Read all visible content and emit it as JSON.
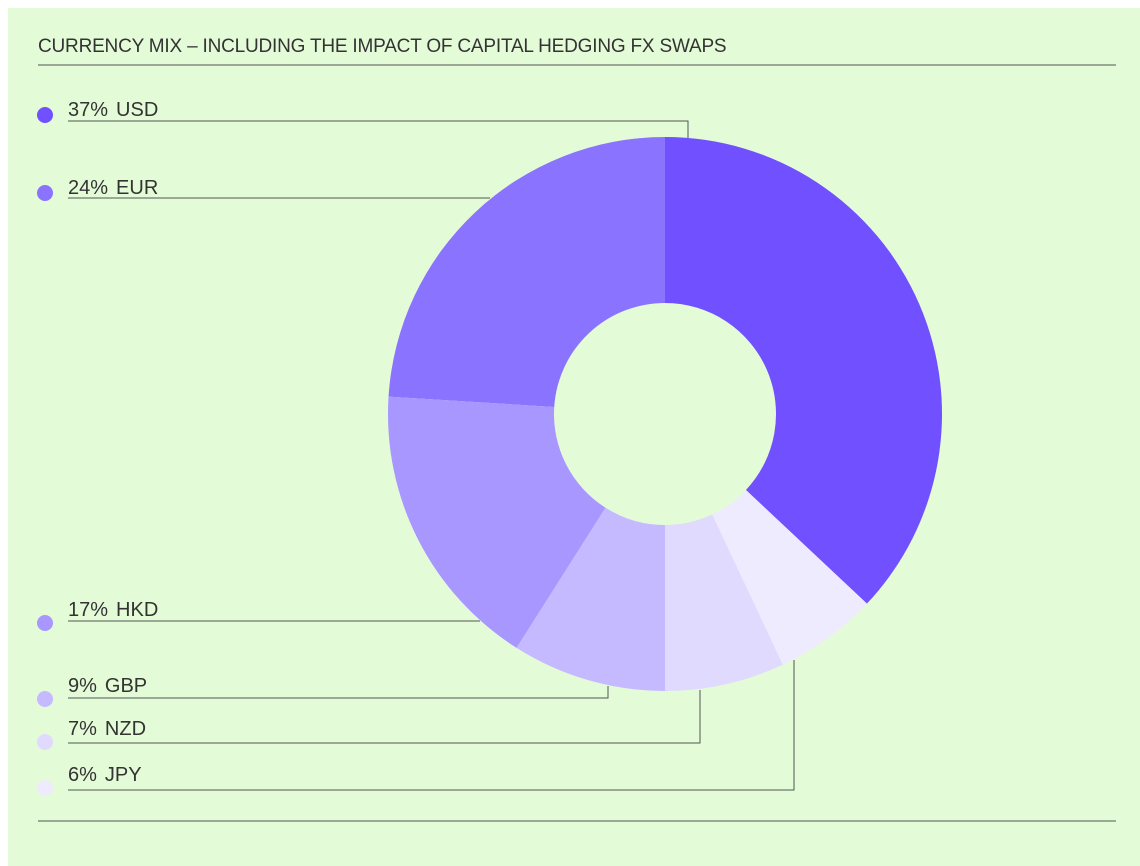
{
  "chart_data": {
    "type": "donut",
    "title": "CURRENCY MIX – INCLUDING THE IMPACT OF CAPITAL HEDGING FX SWAPS",
    "categories": [
      "USD",
      "EUR",
      "HKD",
      "GBP",
      "NZD",
      "JPY"
    ],
    "values": [
      37,
      24,
      17,
      9,
      7,
      6
    ],
    "value_labels": [
      "37%",
      "24%",
      "17%",
      "9%",
      "7%",
      "6%"
    ],
    "colors": [
      "#7050ff",
      "#8a73ff",
      "#a797ff",
      "#c5b9ff",
      "#e0daff",
      "#efebff"
    ]
  }
}
